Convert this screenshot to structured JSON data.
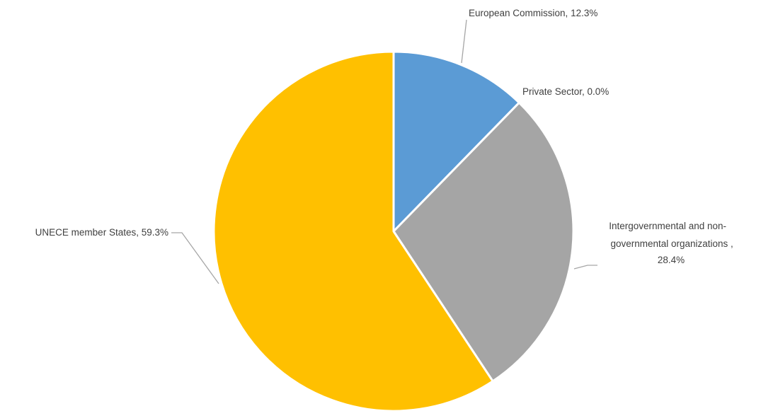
{
  "chart_data": {
    "type": "pie",
    "title": "",
    "categories": [
      "European Commission",
      "Private Sector",
      "Intergovernmental and non-governmental organizations",
      "UNECE member States"
    ],
    "values": [
      12.3,
      0.0,
      28.4,
      59.3
    ],
    "colors": [
      "#5b9bd5",
      "#ed7d31",
      "#a5a5a5",
      "#ffc000"
    ],
    "labels": [
      [
        "European Commission, 12.3%"
      ],
      [
        "Private Sector, 0.0%"
      ],
      [
        "Intergovernmental and non-",
        "governmental organizations ,",
        "28.4%"
      ],
      [
        "UNECE member States, 59.3%"
      ]
    ],
    "legend": "none"
  }
}
